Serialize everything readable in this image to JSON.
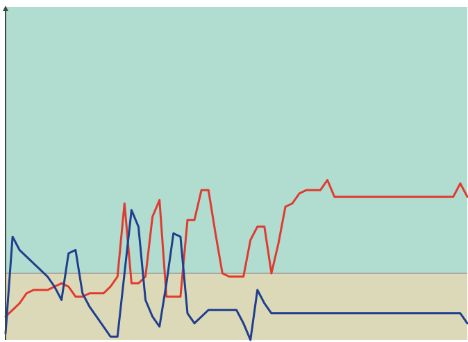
{
  "chart_data": {
    "type": "line",
    "title": "",
    "xlabel": "",
    "ylabel": "",
    "x": [
      0,
      1,
      2,
      3,
      4,
      5,
      6,
      7,
      8,
      9,
      10,
      11,
      12,
      13,
      14,
      15,
      16,
      17,
      18,
      19,
      20,
      21,
      22,
      23,
      24,
      25,
      26,
      27,
      28,
      29,
      30,
      31,
      32,
      33,
      34,
      35,
      36,
      37,
      38,
      39,
      40,
      41,
      42,
      43,
      44,
      45,
      46,
      47,
      48,
      49,
      50,
      51,
      52,
      53,
      54,
      55,
      56,
      57,
      58,
      59,
      60,
      61,
      62,
      63,
      64,
      65,
      66
    ],
    "ylim": [
      0,
      100
    ],
    "xlim": [
      0,
      66
    ],
    "grid": false,
    "legend": "none",
    "bands": [
      {
        "from": 0,
        "to": 20,
        "color": "#dcd9b8"
      },
      {
        "from": 20,
        "to": 100,
        "color": "#b0ddcf"
      }
    ],
    "series": [
      {
        "color": "#e03a30",
        "values": [
          7,
          9,
          11,
          14,
          15,
          15,
          15,
          16,
          17,
          16,
          13,
          13,
          14,
          14,
          14,
          16,
          19,
          41,
          17,
          17,
          19,
          37,
          42,
          13,
          13,
          13,
          36,
          36,
          45,
          45,
          32,
          20,
          19,
          19,
          19,
          30,
          34,
          34,
          20,
          29,
          40,
          41,
          44,
          45,
          45,
          45,
          48,
          43,
          43,
          43,
          43,
          43,
          43,
          43,
          43,
          43,
          43,
          43,
          43,
          43,
          43,
          43,
          43,
          43,
          43,
          47,
          43
        ]
      },
      {
        "color": "#1f3e8f",
        "values": [
          2,
          31,
          27,
          25,
          23,
          21,
          19,
          16,
          12,
          26,
          27,
          14,
          10,
          7,
          4,
          1,
          1,
          20,
          39,
          34,
          12,
          7,
          4,
          17,
          32,
          31,
          8,
          5,
          7,
          9,
          9,
          9,
          9,
          9,
          5,
          0,
          15,
          11,
          8,
          8,
          8,
          8,
          8,
          8,
          8,
          8,
          8,
          8,
          8,
          8,
          8,
          8,
          8,
          8,
          8,
          8,
          8,
          8,
          8,
          8,
          8,
          8,
          8,
          8,
          8,
          8,
          5
        ]
      }
    ]
  }
}
